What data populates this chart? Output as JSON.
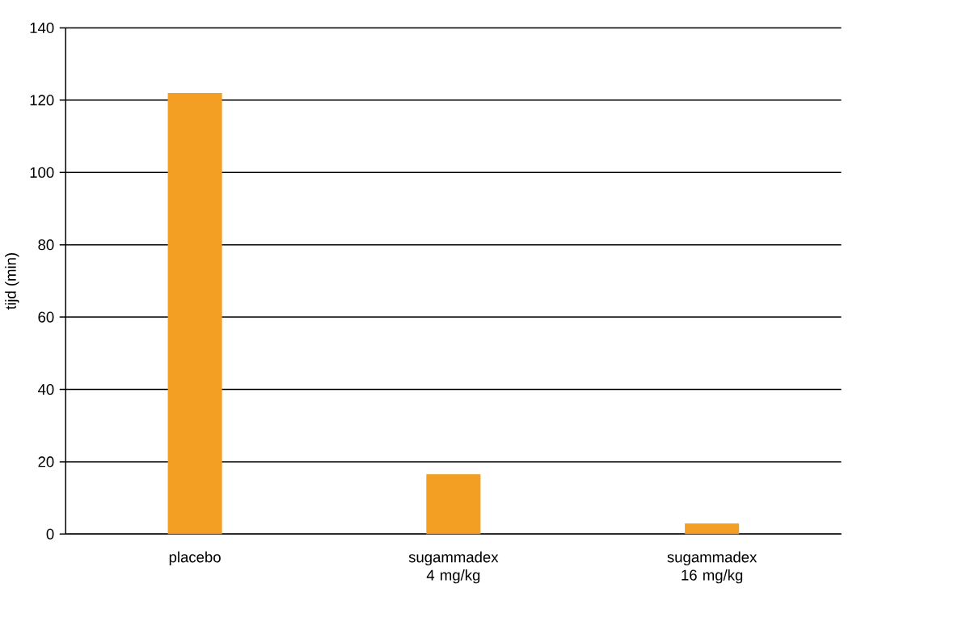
{
  "chart_data": {
    "type": "bar",
    "ylabel": "tijd (min)",
    "categories": [
      "placebo",
      "sugammadex 4 mg/kg",
      "sugammadex 16 mg/kg"
    ],
    "values": [
      122,
      16.6,
      2.9
    ],
    "color": "#f39f24",
    "ylim": [
      0,
      140
    ],
    "yticks": [
      0,
      20,
      40,
      60,
      80,
      100,
      120,
      140
    ],
    "grid": "y"
  }
}
